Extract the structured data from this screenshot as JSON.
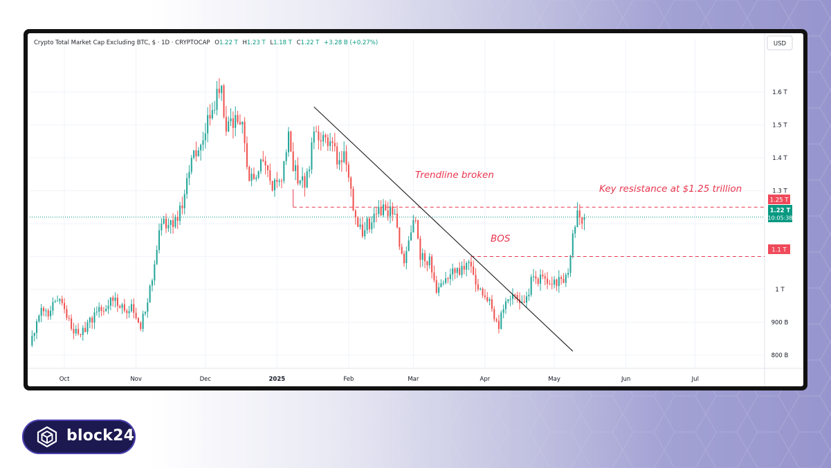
{
  "header": {
    "symbol": "Crypto Total Market Cap Excluding BTC, $ · 1D · CRYPTOCAP",
    "o_label": "O",
    "o_value": "1.22 T",
    "h_label": "H",
    "h_value": "1.23 T",
    "l_label": "L",
    "l_value": "1.18 T",
    "c_label": "C",
    "c_value": "1.22 T",
    "change": "+3.28 B (+0.27%)"
  },
  "currency": "USD",
  "annotations": {
    "trendline_text": "Trendline broken",
    "bos_text": "BOS",
    "resistance_text": "Key resistance at $1.25 trillion"
  },
  "price_labels": {
    "resistance": "1.25 T",
    "current_price": "1.22 T",
    "countdown": "10:05:38",
    "bos_level": "1.1 T"
  },
  "logo": {
    "text": "block24",
    "icon": "cube-icon"
  },
  "colors": {
    "up": "#26a69a",
    "down": "#ef5350",
    "annotation_red": "#e8364e",
    "trendline": "#1a1a1a",
    "current_price": "#089981"
  },
  "chart_data": {
    "type": "candlestick",
    "title": "Crypto Total Market Cap Excluding BTC, $ · 1D · CRYPTOCAP",
    "y_unit": "USD",
    "ylim": [
      760,
      1720
    ],
    "y_ticks": [
      {
        "value": 1600,
        "label": "1.6 T"
      },
      {
        "value": 1500,
        "label": "1.5 T"
      },
      {
        "value": 1400,
        "label": "1.4 T"
      },
      {
        "value": 1300,
        "label": "1.3 T"
      },
      {
        "value": 1200,
        "label": ""
      },
      {
        "value": 1100,
        "label": ""
      },
      {
        "value": 1000,
        "label": "1 T"
      },
      {
        "value": 900,
        "label": "900 B"
      },
      {
        "value": 800,
        "label": "800 B"
      }
    ],
    "x_ticks": [
      {
        "date": "2024-10-01",
        "label": "Oct",
        "bold": false
      },
      {
        "date": "2024-11-01",
        "label": "Nov",
        "bold": false
      },
      {
        "date": "2024-12-01",
        "label": "Dec",
        "bold": false
      },
      {
        "date": "2025-01-01",
        "label": "2025",
        "bold": true
      },
      {
        "date": "2025-02-01",
        "label": "Feb",
        "bold": false
      },
      {
        "date": "2025-03-01",
        "label": "Mar",
        "bold": false
      },
      {
        "date": "2025-04-01",
        "label": "Apr",
        "bold": false
      },
      {
        "date": "2025-05-01",
        "label": "May",
        "bold": false
      },
      {
        "date": "2025-06-01",
        "label": "Jun",
        "bold": false
      },
      {
        "date": "2025-07-01",
        "label": "Jul",
        "bold": false
      }
    ],
    "x_range": [
      "2024-09-16",
      "2025-07-31"
    ],
    "anchors": [
      [
        "2024-09-16",
        830
      ],
      [
        "2024-09-20",
        920
      ],
      [
        "2024-09-25",
        935
      ],
      [
        "2024-09-28",
        965
      ],
      [
        "2024-10-01",
        940
      ],
      [
        "2024-10-04",
        880
      ],
      [
        "2024-10-10",
        870
      ],
      [
        "2024-10-14",
        930
      ],
      [
        "2024-10-20",
        950
      ],
      [
        "2024-10-22",
        965
      ],
      [
        "2024-10-27",
        935
      ],
      [
        "2024-10-30",
        955
      ],
      [
        "2024-11-03",
        880
      ],
      [
        "2024-11-06",
        960
      ],
      [
        "2024-11-10",
        1120
      ],
      [
        "2024-11-12",
        1200
      ],
      [
        "2024-11-17",
        1190
      ],
      [
        "2024-11-22",
        1290
      ],
      [
        "2024-11-25",
        1400
      ],
      [
        "2024-11-29",
        1440
      ],
      [
        "2024-12-03",
        1520
      ],
      [
        "2024-12-06",
        1610
      ],
      [
        "2024-12-08",
        1620
      ],
      [
        "2024-12-10",
        1480
      ],
      [
        "2024-12-12",
        1520
      ],
      [
        "2024-12-14",
        1530
      ],
      [
        "2024-12-17",
        1510
      ],
      [
        "2024-12-20",
        1330
      ],
      [
        "2024-12-23",
        1340
      ],
      [
        "2024-12-26",
        1390
      ],
      [
        "2024-12-29",
        1330
      ],
      [
        "2025-01-03",
        1330
      ],
      [
        "2025-01-06",
        1480
      ],
      [
        "2025-01-08",
        1360
      ],
      [
        "2025-01-13",
        1310
      ],
      [
        "2025-01-17",
        1480
      ],
      [
        "2025-01-20",
        1450
      ],
      [
        "2025-01-24",
        1450
      ],
      [
        "2025-01-27",
        1380
      ],
      [
        "2025-01-30",
        1420
      ],
      [
        "2025-02-03",
        1240
      ],
      [
        "2025-02-05",
        1190
      ],
      [
        "2025-02-08",
        1180
      ],
      [
        "2025-02-12",
        1230
      ],
      [
        "2025-02-17",
        1240
      ],
      [
        "2025-02-21",
        1230
      ],
      [
        "2025-02-25",
        1080
      ],
      [
        "2025-03-02",
        1210
      ],
      [
        "2025-03-04",
        1090
      ],
      [
        "2025-03-08",
        1100
      ],
      [
        "2025-03-11",
        990
      ],
      [
        "2025-03-14",
        1020
      ],
      [
        "2025-03-19",
        1050
      ],
      [
        "2025-03-24",
        1080
      ],
      [
        "2025-03-26",
        1070
      ],
      [
        "2025-03-29",
        1000
      ],
      [
        "2025-04-03",
        970
      ],
      [
        "2025-04-07",
        880
      ],
      [
        "2025-04-09",
        940
      ],
      [
        "2025-04-11",
        970
      ],
      [
        "2025-04-15",
        970
      ],
      [
        "2025-04-18",
        960
      ],
      [
        "2025-04-22",
        1040
      ],
      [
        "2025-04-26",
        1040
      ],
      [
        "2025-05-01",
        1030
      ],
      [
        "2025-05-05",
        1020
      ],
      [
        "2025-05-07",
        1050
      ],
      [
        "2025-05-09",
        1170
      ],
      [
        "2025-05-11",
        1240
      ],
      [
        "2025-05-13",
        1200
      ],
      [
        "2025-05-14",
        1220
      ]
    ],
    "reference_lines": [
      {
        "name": "Key resistance",
        "value": 1250,
        "from": "2025-01-08",
        "style": "dashed"
      },
      {
        "name": "BOS",
        "value": 1100,
        "from": "2025-03-26",
        "style": "dashed"
      },
      {
        "name": "Current price",
        "value": 1220,
        "from": "2024-09-16",
        "style": "dotted"
      }
    ],
    "trendline": {
      "from": [
        "2025-01-17",
        1555
      ],
      "to": [
        "2025-05-09",
        812
      ]
    },
    "last": {
      "open": 1220,
      "high": 1230,
      "low": 1180,
      "close": 1220,
      "change": "+3.28 B",
      "change_pct": "+0.27%"
    }
  }
}
